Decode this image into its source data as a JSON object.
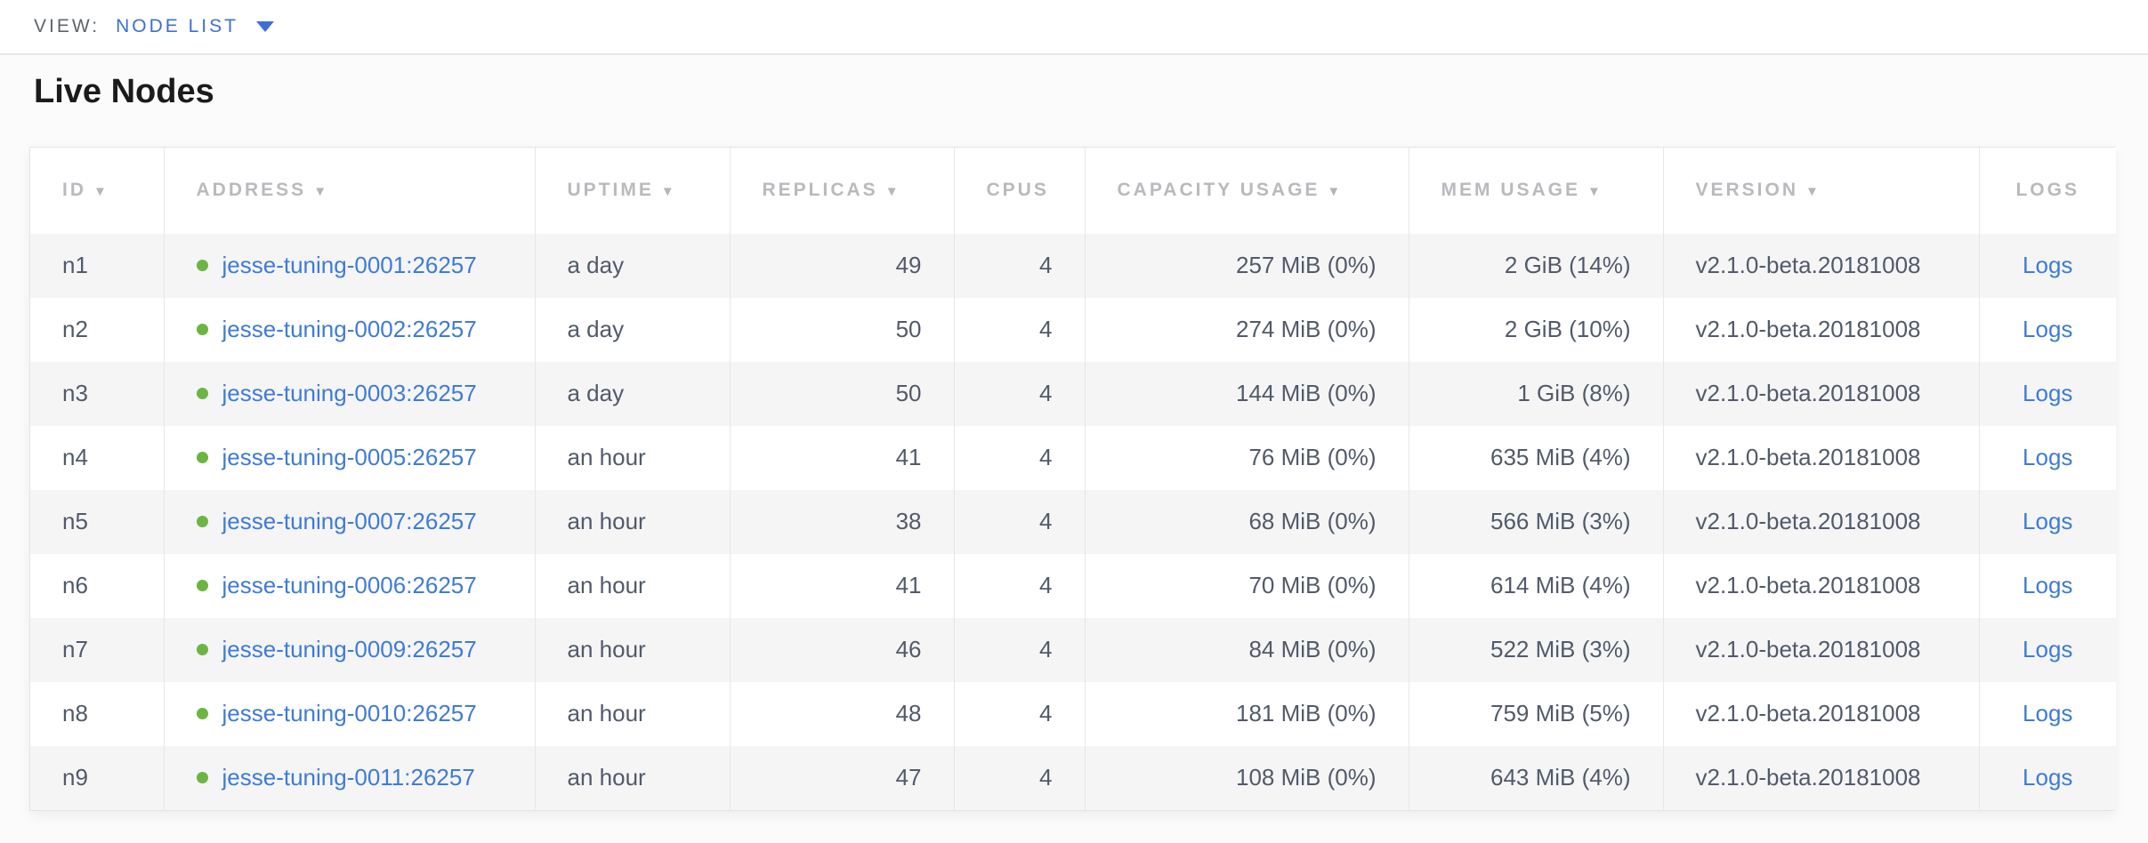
{
  "view_bar": {
    "label": "VIEW:",
    "selected_view": "NODE LIST"
  },
  "page": {
    "title": "Live Nodes"
  },
  "icons": {
    "sort_arrow": "▼"
  },
  "colors": {
    "accent_blue": "#3d6fd6",
    "link_blue": "#3e7bd9",
    "live_green": "#6cb544",
    "header_gray": "#b8babd",
    "body_text": "#515a6b",
    "row_stripe": "#f5f5f6"
  },
  "table": {
    "columns": [
      {
        "key": "id",
        "label": "ID",
        "sortable": true
      },
      {
        "key": "address",
        "label": "ADDRESS",
        "sortable": true
      },
      {
        "key": "uptime",
        "label": "UPTIME",
        "sortable": true
      },
      {
        "key": "replicas",
        "label": "REPLICAS",
        "sortable": true
      },
      {
        "key": "cpus",
        "label": "CPUS",
        "sortable": false
      },
      {
        "key": "capacity",
        "label": "CAPACITY USAGE",
        "sortable": true
      },
      {
        "key": "mem",
        "label": "MEM USAGE",
        "sortable": true
      },
      {
        "key": "version",
        "label": "VERSION",
        "sortable": true
      },
      {
        "key": "logs",
        "label": "LOGS",
        "sortable": false
      }
    ],
    "rows": [
      {
        "id": "n1",
        "status": "live",
        "address": "jesse-tuning-0001:26257",
        "uptime": "a day",
        "replicas": "49",
        "cpus": "4",
        "capacity_usage": "257 MiB (0%)",
        "mem_usage": "2 GiB (14%)",
        "version": "v2.1.0-beta.20181008",
        "logs_label": "Logs"
      },
      {
        "id": "n2",
        "status": "live",
        "address": "jesse-tuning-0002:26257",
        "uptime": "a day",
        "replicas": "50",
        "cpus": "4",
        "capacity_usage": "274 MiB (0%)",
        "mem_usage": "2 GiB (10%)",
        "version": "v2.1.0-beta.20181008",
        "logs_label": "Logs"
      },
      {
        "id": "n3",
        "status": "live",
        "address": "jesse-tuning-0003:26257",
        "uptime": "a day",
        "replicas": "50",
        "cpus": "4",
        "capacity_usage": "144 MiB (0%)",
        "mem_usage": "1 GiB (8%)",
        "version": "v2.1.0-beta.20181008",
        "logs_label": "Logs"
      },
      {
        "id": "n4",
        "status": "live",
        "address": "jesse-tuning-0005:26257",
        "uptime": "an hour",
        "replicas": "41",
        "cpus": "4",
        "capacity_usage": "76 MiB (0%)",
        "mem_usage": "635 MiB (4%)",
        "version": "v2.1.0-beta.20181008",
        "logs_label": "Logs"
      },
      {
        "id": "n5",
        "status": "live",
        "address": "jesse-tuning-0007:26257",
        "uptime": "an hour",
        "replicas": "38",
        "cpus": "4",
        "capacity_usage": "68 MiB (0%)",
        "mem_usage": "566 MiB (3%)",
        "version": "v2.1.0-beta.20181008",
        "logs_label": "Logs"
      },
      {
        "id": "n6",
        "status": "live",
        "address": "jesse-tuning-0006:26257",
        "uptime": "an hour",
        "replicas": "41",
        "cpus": "4",
        "capacity_usage": "70 MiB (0%)",
        "mem_usage": "614 MiB (4%)",
        "version": "v2.1.0-beta.20181008",
        "logs_label": "Logs"
      },
      {
        "id": "n7",
        "status": "live",
        "address": "jesse-tuning-0009:26257",
        "uptime": "an hour",
        "replicas": "46",
        "cpus": "4",
        "capacity_usage": "84 MiB (0%)",
        "mem_usage": "522 MiB (3%)",
        "version": "v2.1.0-beta.20181008",
        "logs_label": "Logs"
      },
      {
        "id": "n8",
        "status": "live",
        "address": "jesse-tuning-0010:26257",
        "uptime": "an hour",
        "replicas": "48",
        "cpus": "4",
        "capacity_usage": "181 MiB (0%)",
        "mem_usage": "759 MiB (5%)",
        "version": "v2.1.0-beta.20181008",
        "logs_label": "Logs"
      },
      {
        "id": "n9",
        "status": "live",
        "address": "jesse-tuning-0011:26257",
        "uptime": "an hour",
        "replicas": "47",
        "cpus": "4",
        "capacity_usage": "108 MiB (0%)",
        "mem_usage": "643 MiB (4%)",
        "version": "v2.1.0-beta.20181008",
        "logs_label": "Logs"
      }
    ]
  }
}
